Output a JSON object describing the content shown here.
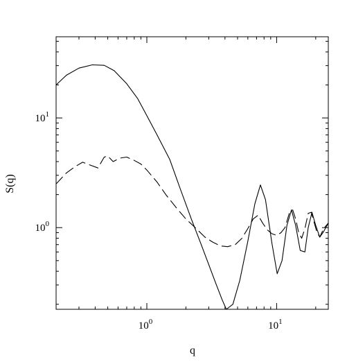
{
  "chart_data": {
    "type": "line",
    "title": "",
    "xlabel": "q",
    "ylabel": "S(q)",
    "xscale": "log",
    "yscale": "log",
    "xlim": [
      0.2,
      25
    ],
    "ylim": [
      0.18,
      55
    ],
    "x_ticks": [
      {
        "value": 1,
        "base": "10",
        "exp": "0"
      },
      {
        "value": 10,
        "base": "10",
        "exp": "1"
      }
    ],
    "y_ticks": [
      {
        "value": 1,
        "base": "10",
        "exp": "0"
      },
      {
        "value": 10,
        "base": "10",
        "exp": "1"
      }
    ],
    "grid": false,
    "legend": "none",
    "series": [
      {
        "style": "solid",
        "color": "#000000",
        "x": [
          0.2,
          0.24,
          0.3,
          0.38,
          0.47,
          0.56,
          0.7,
          0.85,
          1.0,
          1.2,
          1.5,
          1.8,
          2.2,
          2.6,
          3.0,
          3.4,
          3.8,
          4.1,
          4.6,
          5.2,
          6.0,
          6.8,
          7.5,
          8.2,
          9.2,
          10.1,
          11.0,
          12.0,
          13.0,
          14.0,
          15.2,
          16.5,
          17.5,
          18.7,
          20.0,
          21.5,
          23.0,
          25.0
        ],
        "y": [
          20.0,
          24.5,
          28.5,
          30.5,
          30.2,
          27.0,
          20.5,
          15.0,
          10.5,
          7.0,
          4.2,
          2.3,
          1.2,
          0.72,
          0.46,
          0.31,
          0.22,
          0.18,
          0.2,
          0.33,
          0.75,
          1.65,
          2.45,
          1.8,
          0.72,
          0.38,
          0.5,
          1.05,
          1.45,
          1.05,
          0.62,
          0.6,
          1.0,
          1.38,
          1.05,
          0.82,
          0.92,
          1.1
        ]
      },
      {
        "style": "dashed",
        "color": "#000000",
        "x": [
          0.2,
          0.24,
          0.28,
          0.32,
          0.37,
          0.42,
          0.47,
          0.5,
          0.55,
          0.62,
          0.7,
          0.8,
          0.9,
          1.0,
          1.2,
          1.4,
          1.7,
          2.0,
          2.4,
          2.8,
          3.2,
          3.7,
          4.2,
          4.8,
          5.4,
          6.0,
          6.6,
          7.2,
          7.8,
          8.5,
          9.2,
          10.0,
          10.8,
          11.6,
          12.5,
          13.3,
          14.0,
          14.8,
          15.6,
          16.5,
          17.5,
          18.5,
          19.5,
          20.5,
          21.5,
          23.0,
          25.0
        ],
        "y": [
          2.5,
          3.15,
          3.6,
          3.95,
          3.7,
          3.5,
          4.4,
          4.5,
          4.0,
          4.3,
          4.4,
          4.1,
          3.8,
          3.35,
          2.6,
          2.0,
          1.5,
          1.2,
          0.98,
          0.82,
          0.74,
          0.68,
          0.67,
          0.7,
          0.8,
          0.98,
          1.2,
          1.3,
          1.1,
          0.95,
          0.88,
          0.85,
          0.9,
          1.0,
          1.35,
          1.45,
          1.2,
          0.9,
          0.8,
          0.98,
          1.35,
          1.38,
          1.1,
          0.9,
          0.82,
          0.98,
          1.1
        ]
      }
    ]
  }
}
